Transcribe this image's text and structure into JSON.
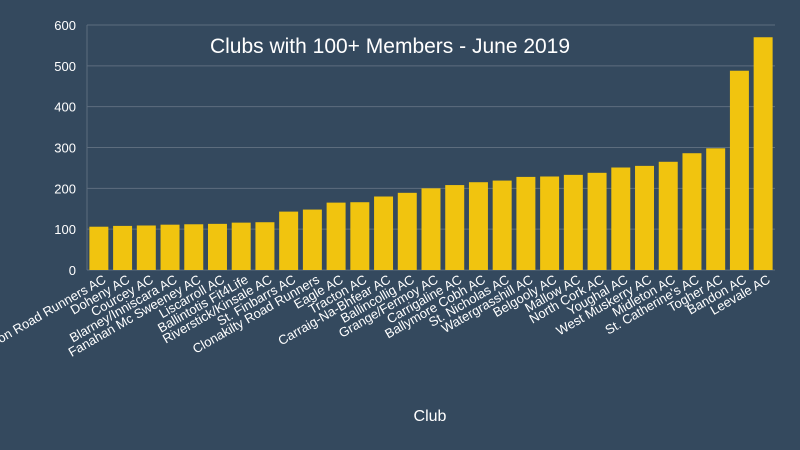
{
  "chart_data": {
    "type": "bar",
    "title": "Clubs with 100+ Members - June 2019",
    "xlabel": "Club",
    "ylabel": "",
    "ylim": [
      0,
      600
    ],
    "yticks": [
      0,
      100,
      200,
      300,
      400,
      500,
      600
    ],
    "grid": true,
    "legend": "none",
    "bar_color": "#f1c40f",
    "background_color": "#34495e",
    "grid_color": "#5d6d7e",
    "text_color": "#ffffff",
    "categories": [
      "Marathon Road Runners AC",
      "Doheny AC",
      "Courcey AC",
      "Blarney/Inniscara AC",
      "Fanahan Mc Sweeney AC",
      "Liscarroll AC",
      "Ballintotis Fit4Life",
      "Riverstick/Kinsale AC",
      "St. Finbarrs AC",
      "Clonakilty Road Runners",
      "Eagle AC",
      "Tracton AC",
      "Carraig-Na-Bhfear AC",
      "Ballincollig AC",
      "Grange/Fermoy AC",
      "Carrigaline AC",
      "Ballymore Cobh AC",
      "St. Nicholas AC",
      "Watergrasshill AC",
      "Belgooly AC",
      "Mallow AC",
      "North Cork AC",
      "Youghal AC",
      "West Muskerry AC",
      "Midleton AC",
      "St. Catherine's AC",
      "Togher AC",
      "Bandon AC",
      "Leevale AC"
    ],
    "values": [
      106,
      108,
      109,
      111,
      112,
      113,
      116,
      117,
      143,
      148,
      165,
      166,
      180,
      189,
      200,
      208,
      215,
      219,
      228,
      229,
      233,
      238,
      251,
      255,
      265,
      286,
      298,
      488,
      570
    ]
  }
}
